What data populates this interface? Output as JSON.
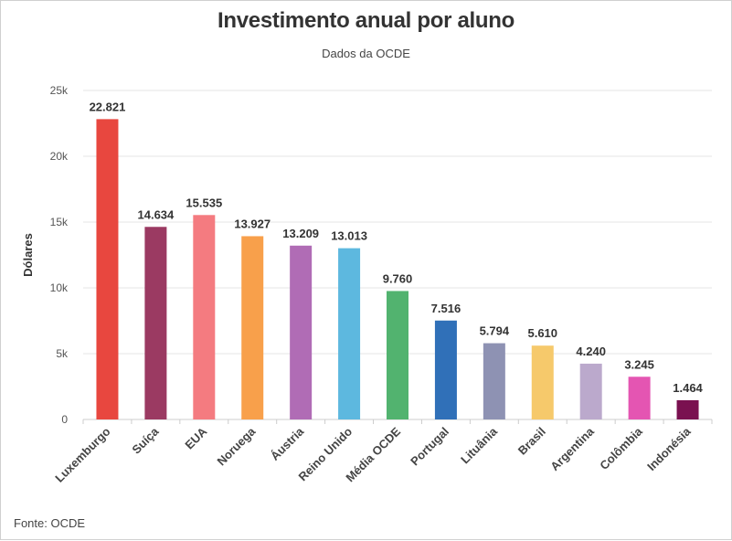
{
  "title": "Investimento anual por aluno",
  "subtitle": "Dados da OCDE",
  "source": "Fonte: OCDE",
  "chart_data": {
    "type": "bar",
    "title": "Investimento anual por aluno",
    "subtitle": "Dados da OCDE",
    "xlabel": "",
    "ylabel": "Dólares",
    "ylim": [
      0,
      25000
    ],
    "yticks": [
      0,
      5000,
      10000,
      15000,
      20000,
      25000
    ],
    "ytick_labels": [
      "0",
      "5k",
      "10k",
      "15k",
      "20k",
      "25k"
    ],
    "grid": true,
    "legend": "none",
    "categories": [
      "Luxemburgo",
      "Suíça",
      "EUA",
      "Noruega",
      "Áustria",
      "Reino Unido",
      "Média OCDE",
      "Portugal",
      "Lituânia",
      "Brasil",
      "Argentina",
      "Colômbia",
      "Indonésia"
    ],
    "values": [
      22821,
      14634,
      15535,
      13927,
      13209,
      13013,
      9760,
      7516,
      5794,
      5610,
      4240,
      3245,
      1464
    ],
    "value_labels": [
      "22.821",
      "14.634",
      "15.535",
      "13.927",
      "13.209",
      "13.013",
      "9.760",
      "7.516",
      "5.794",
      "5.610",
      "4.240",
      "3.245",
      "1.464"
    ],
    "colors": [
      "#e8473f",
      "#9b3a62",
      "#f47b80",
      "#f8a04b",
      "#b06cb5",
      "#5db8df",
      "#52b36f",
      "#3070b8",
      "#8e92b3",
      "#f6c96b",
      "#bba9cc",
      "#e455b2",
      "#7a1150"
    ]
  }
}
